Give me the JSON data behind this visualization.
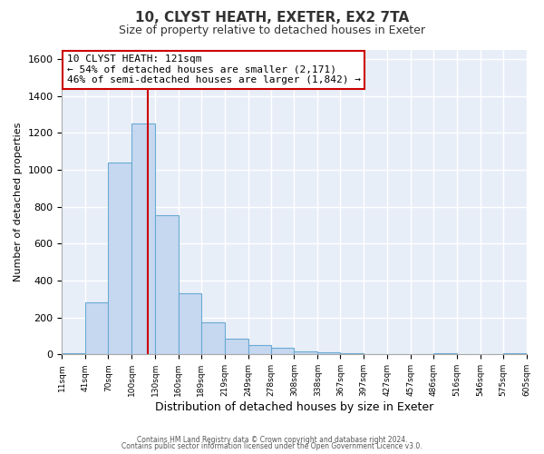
{
  "title1": "10, CLYST HEATH, EXETER, EX2 7TA",
  "title2": "Size of property relative to detached houses in Exeter",
  "xlabel": "Distribution of detached houses by size in Exeter",
  "ylabel": "Number of detached properties",
  "bar_edges": [
    11,
    41,
    70,
    100,
    130,
    160,
    189,
    219,
    249,
    278,
    308,
    338,
    367,
    397,
    427,
    457,
    486,
    516,
    546,
    575,
    605
  ],
  "bar_heights": [
    5,
    280,
    1040,
    1250,
    755,
    330,
    175,
    85,
    50,
    35,
    15,
    10,
    5,
    0,
    0,
    0,
    5,
    0,
    0,
    5
  ],
  "bar_color": "#c5d8f0",
  "bar_edge_color": "#6aaad4",
  "tick_labels": [
    "11sqm",
    "41sqm",
    "70sqm",
    "100sqm",
    "130sqm",
    "160sqm",
    "189sqm",
    "219sqm",
    "249sqm",
    "278sqm",
    "308sqm",
    "338sqm",
    "367sqm",
    "397sqm",
    "427sqm",
    "457sqm",
    "486sqm",
    "516sqm",
    "546sqm",
    "575sqm",
    "605sqm"
  ],
  "property_size": 121,
  "vline_color": "#cc0000",
  "annotation_line1": "10 CLYST HEATH: 121sqm",
  "annotation_line2": "← 54% of detached houses are smaller (2,171)",
  "annotation_line3": "46% of semi-detached houses are larger (1,842) →",
  "annotation_box_color": "#ffffff",
  "annotation_border_color": "#cc0000",
  "ylim": [
    0,
    1650
  ],
  "yticks": [
    0,
    200,
    400,
    600,
    800,
    1000,
    1200,
    1400,
    1600
  ],
  "footer1": "Contains HM Land Registry data © Crown copyright and database right 2024.",
  "footer2": "Contains public sector information licensed under the Open Government Licence v3.0.",
  "bg_color": "#ffffff",
  "plot_bg_color": "#e8eef8",
  "grid_color": "#ffffff",
  "title1_fontsize": 11,
  "title2_fontsize": 9,
  "ylabel_fontsize": 8,
  "xlabel_fontsize": 9,
  "tick_fontsize": 6.5,
  "annotation_fontsize": 8
}
